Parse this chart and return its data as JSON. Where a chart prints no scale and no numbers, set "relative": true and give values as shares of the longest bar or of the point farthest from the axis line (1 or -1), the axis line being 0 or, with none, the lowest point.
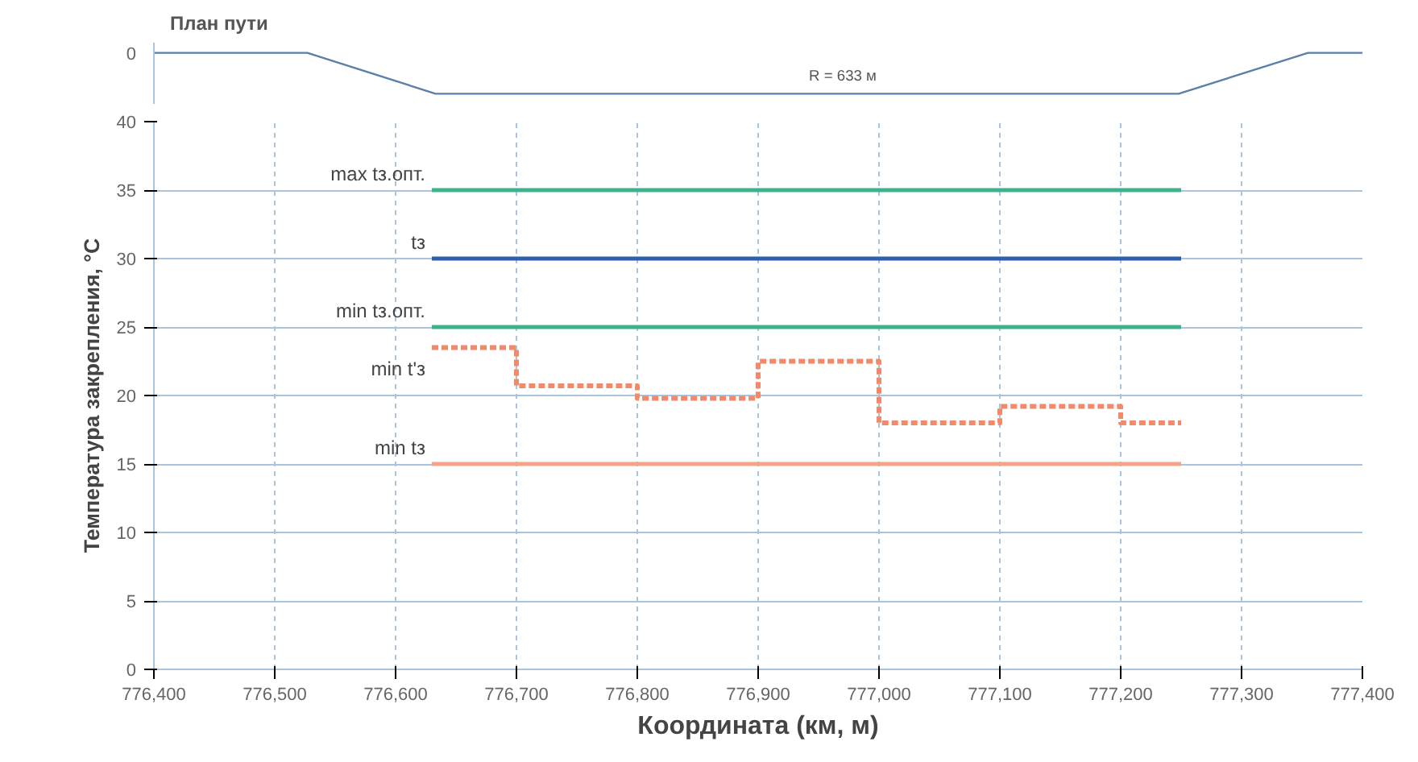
{
  "chart_data": [
    {
      "type": "line",
      "title": "План пути",
      "relative": true,
      "tick_labels": false,
      "xlim": [
        776400,
        777400
      ],
      "grid": false,
      "annotations": [
        "0",
        {
          "text": "R = 633 м",
          "x": 776970,
          "y": 0
        }
      ],
      "series": [
        {
          "color": "#5a7fa8",
          "x": [
            776400,
            776527,
            776633,
            777248,
            777355,
            777400
          ],
          "values": [
            1,
            1,
            0,
            0,
            1,
            1
          ]
        }
      ]
    },
    {
      "type": "line",
      "xlabel": "Координата (км, м)",
      "ylabel": "Температура закрепления, °С",
      "xlim": [
        776400,
        777400
      ],
      "ylim": [
        0,
        40
      ],
      "grid": true,
      "xticks": [
        {
          "value": 776400,
          "label": "776,400"
        },
        {
          "value": 776500,
          "label": "776,500"
        },
        {
          "value": 776600,
          "label": "776,600"
        },
        {
          "value": 776700,
          "label": "776,700"
        },
        {
          "value": 776800,
          "label": "776,800"
        },
        {
          "value": 776900,
          "label": "776,900"
        },
        {
          "value": 777000,
          "label": "777,000"
        },
        {
          "value": 777100,
          "label": "777,100"
        },
        {
          "value": 777200,
          "label": "777,200"
        },
        {
          "value": 777300,
          "label": "777,300"
        },
        {
          "value": 777400,
          "label": "777,400"
        }
      ],
      "yticks": [
        0,
        5,
        10,
        15,
        20,
        25,
        30,
        35,
        40
      ],
      "series": [
        {
          "name": "max tз.опт.",
          "color": "#3cb38a",
          "x": [
            776630,
            777250
          ],
          "values": [
            35,
            35
          ]
        },
        {
          "name": "tз",
          "color": "#2e5fa8",
          "x": [
            776630,
            777250
          ],
          "values": [
            30,
            30
          ]
        },
        {
          "name": "min tз.опт.",
          "color": "#3cb38a",
          "x": [
            776630,
            777250
          ],
          "values": [
            25,
            25
          ]
        },
        {
          "name": "min t'з",
          "type": "step",
          "line_style": "dotted",
          "color": "#f08a6a",
          "x": [
            776630,
            776700,
            776800,
            776900,
            777000,
            777100,
            777200,
            777250
          ],
          "values": [
            23.5,
            20.7,
            19.8,
            22.5,
            18,
            19.2,
            18,
            18
          ]
        },
        {
          "name": "min tз",
          "color": "#f7a38a",
          "x": [
            776630,
            777250
          ],
          "values": [
            15,
            15
          ]
        }
      ]
    }
  ]
}
